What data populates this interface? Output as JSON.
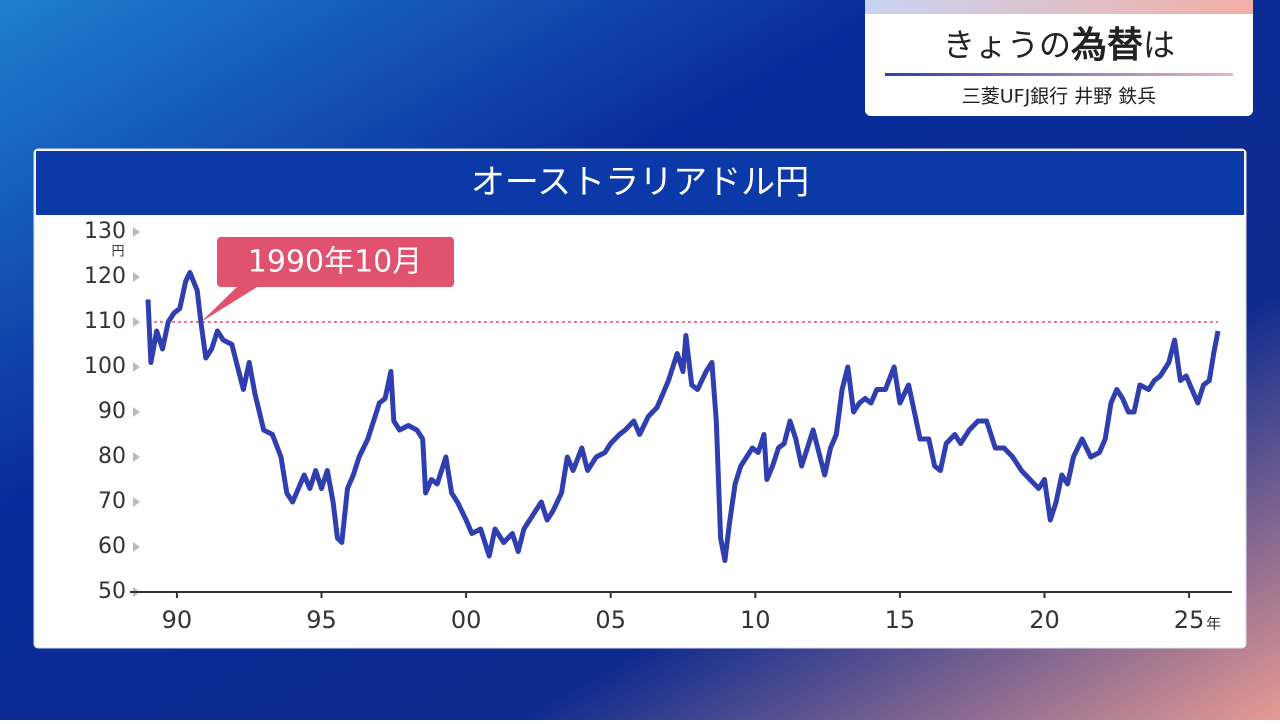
{
  "header": {
    "title_prefix": "きょうの",
    "title_emph": "為替",
    "title_suffix": "は",
    "presenter": "三菱UFJ銀行 井野 鉄兵"
  },
  "chart_data": {
    "type": "line",
    "title": "オーストラリアドル円",
    "y_unit": "円",
    "x_unit": "年",
    "color": "#2f3fb0",
    "ylim": [
      50,
      130
    ],
    "yticks": [
      50,
      60,
      70,
      80,
      90,
      100,
      110,
      120,
      130
    ],
    "xlim": [
      1989,
      2026
    ],
    "xticks": [
      {
        "value": 1990,
        "label": "90"
      },
      {
        "value": 1995,
        "label": "95"
      },
      {
        "value": 2000,
        "label": "00"
      },
      {
        "value": 2005,
        "label": "05"
      },
      {
        "value": 2010,
        "label": "10"
      },
      {
        "value": 2015,
        "label": "15"
      },
      {
        "value": 2020,
        "label": "20"
      },
      {
        "value": 2025,
        "label": "25"
      }
    ],
    "reference_line": 110,
    "annotation": {
      "label": "1990年10月",
      "x": 1990.83,
      "y": 110
    },
    "x": [
      1989.0,
      1989.1,
      1989.3,
      1989.5,
      1989.7,
      1989.9,
      1990.1,
      1990.3,
      1990.45,
      1990.7,
      1990.83,
      1991.0,
      1991.2,
      1991.4,
      1991.6,
      1991.9,
      1992.1,
      1992.3,
      1992.5,
      1992.7,
      1993.0,
      1993.3,
      1993.6,
      1993.8,
      1994.0,
      1994.2,
      1994.4,
      1994.6,
      1994.8,
      1995.0,
      1995.2,
      1995.4,
      1995.55,
      1995.7,
      1995.9,
      1996.1,
      1996.3,
      1996.6,
      1996.8,
      1997.0,
      1997.2,
      1997.4,
      1997.5,
      1997.7,
      1998.0,
      1998.3,
      1998.5,
      1998.6,
      1998.8,
      1999.0,
      1999.3,
      1999.5,
      1999.7,
      2000.0,
      2000.2,
      2000.5,
      2000.8,
      2001.0,
      2001.3,
      2001.6,
      2001.8,
      2002.0,
      2002.3,
      2002.6,
      2002.8,
      2003.0,
      2003.3,
      2003.5,
      2003.7,
      2004.0,
      2004.2,
      2004.5,
      2004.8,
      2005.0,
      2005.3,
      2005.5,
      2005.8,
      2006.0,
      2006.3,
      2006.6,
      2006.8,
      2007.0,
      2007.3,
      2007.5,
      2007.6,
      2007.8,
      2008.0,
      2008.3,
      2008.5,
      2008.65,
      2008.8,
      2008.95,
      2009.1,
      2009.3,
      2009.5,
      2009.7,
      2009.9,
      2010.1,
      2010.3,
      2010.4,
      2010.6,
      2010.8,
      2011.0,
      2011.2,
      2011.4,
      2011.6,
      2011.8,
      2012.0,
      2012.2,
      2012.4,
      2012.6,
      2012.8,
      2013.0,
      2013.2,
      2013.4,
      2013.6,
      2013.8,
      2014.0,
      2014.2,
      2014.5,
      2014.8,
      2015.0,
      2015.3,
      2015.5,
      2015.7,
      2016.0,
      2016.2,
      2016.4,
      2016.6,
      2016.9,
      2017.1,
      2017.4,
      2017.7,
      2018.0,
      2018.3,
      2018.6,
      2018.9,
      2019.2,
      2019.5,
      2019.8,
      2020.0,
      2020.2,
      2020.4,
      2020.6,
      2020.8,
      2021.0,
      2021.3,
      2021.6,
      2021.9,
      2022.1,
      2022.3,
      2022.5,
      2022.7,
      2022.9,
      2023.1,
      2023.3,
      2023.6,
      2023.8,
      2024.0,
      2024.3,
      2024.5,
      2024.7,
      2024.9,
      2025.1,
      2025.3,
      2025.5,
      2025.7,
      2025.85,
      2026.0
    ],
    "values": [
      115,
      101,
      108,
      104,
      110,
      112,
      113,
      119,
      121,
      117,
      110,
      102,
      104,
      108,
      106,
      105,
      100,
      95,
      101,
      94,
      86,
      85,
      80,
      72,
      70,
      73,
      76,
      73,
      77,
      73,
      77,
      70,
      62,
      61,
      73,
      76,
      80,
      84,
      88,
      92,
      93,
      99,
      88,
      86,
      87,
      86,
      84,
      72,
      75,
      74,
      80,
      72,
      70,
      66,
      63,
      64,
      58,
      64,
      61,
      63,
      59,
      64,
      67,
      70,
      66,
      68,
      72,
      80,
      77,
      82,
      77,
      80,
      81,
      83,
      85,
      86,
      88,
      85,
      89,
      91,
      94,
      97,
      103,
      99,
      107,
      96,
      95,
      99,
      101,
      88,
      62,
      57,
      65,
      74,
      78,
      80,
      82,
      81,
      85,
      75,
      78,
      82,
      83,
      88,
      84,
      78,
      82,
      86,
      81,
      76,
      82,
      85,
      95,
      100,
      90,
      92,
      93,
      92,
      95,
      95,
      100,
      92,
      96,
      90,
      84,
      84,
      78,
      77,
      83,
      85,
      83,
      86,
      88,
      88,
      82,
      82,
      80,
      77,
      75,
      73,
      75,
      66,
      70,
      76,
      74,
      80,
      84,
      80,
      81,
      84,
      92,
      95,
      93,
      90,
      90,
      96,
      95,
      97,
      98,
      101,
      106,
      97,
      98,
      95,
      92,
      96,
      97,
      103,
      108
    ]
  }
}
